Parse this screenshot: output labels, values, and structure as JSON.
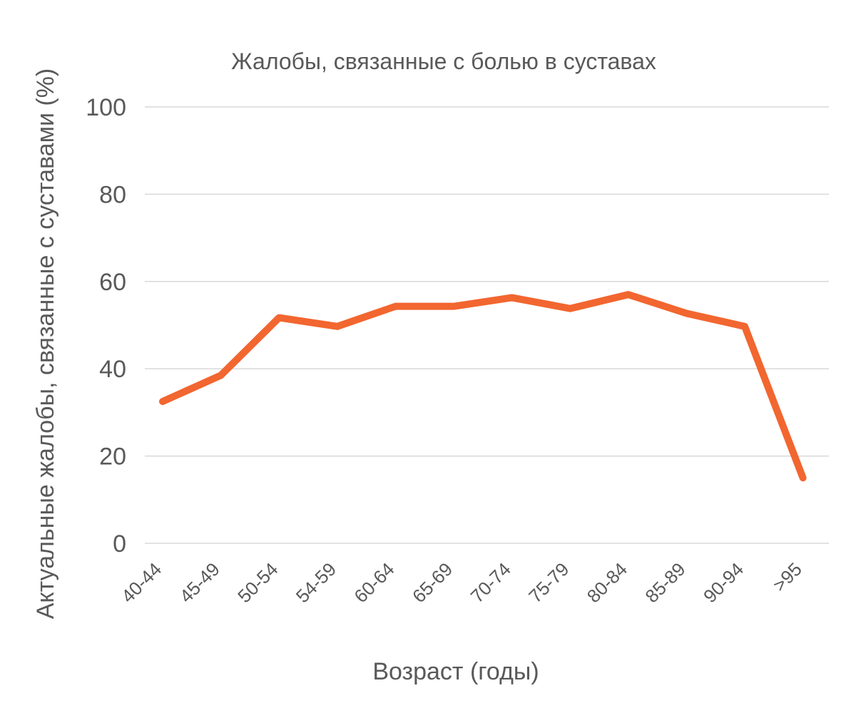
{
  "chart_data": {
    "type": "line",
    "title": "Жалобы, связанные с болью в суставах",
    "xlabel": "Возраст (годы)",
    "ylabel": "Актуальные жалобы, связанные с суставами (%)",
    "categories": [
      "40-44",
      "45-49",
      "50-54",
      "54-59",
      "60-64",
      "65-69",
      "70-74",
      "75-79",
      "80-84",
      "85-89",
      "90-94",
      ">95"
    ],
    "series": [
      {
        "values": [
          32.5,
          38.5,
          51.7,
          49.7,
          54.3,
          54.3,
          56.3,
          53.8,
          57.0,
          52.7,
          49.7,
          15.0
        ],
        "color": "#f26630"
      }
    ],
    "ylim": [
      0,
      100
    ],
    "yticks": [
      0,
      20,
      40,
      60,
      80,
      100
    ],
    "grid": true,
    "legend": "none"
  }
}
